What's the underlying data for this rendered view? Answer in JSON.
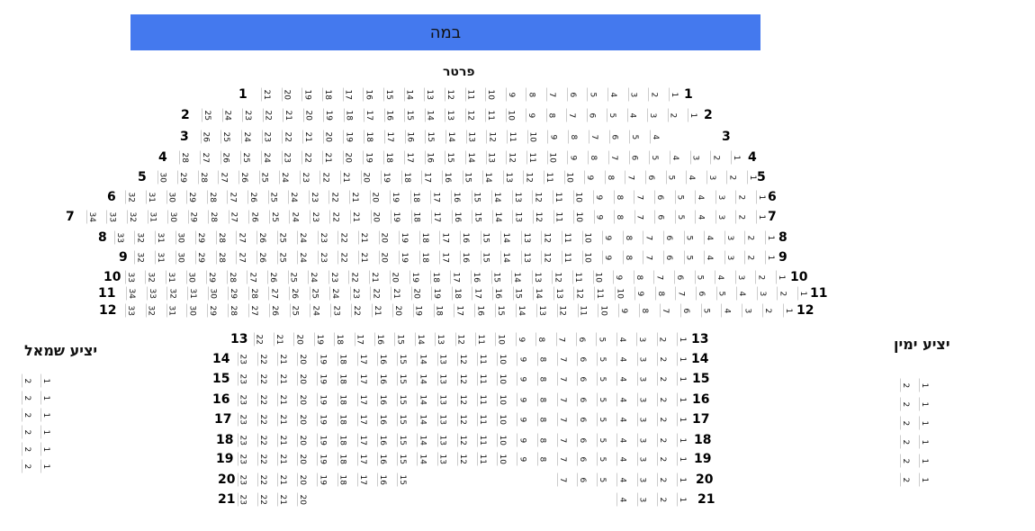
{
  "stage": {
    "label": "במה"
  },
  "parterre": {
    "title": "פרטר",
    "rows": [
      {
        "row": "1",
        "seat_ranges": [
          [
            1,
            21
          ]
        ]
      },
      {
        "row": "2",
        "seat_ranges": [
          [
            1,
            25
          ]
        ]
      },
      {
        "row": "3",
        "seat_ranges": [
          [
            4,
            26
          ]
        ]
      },
      {
        "row": "4",
        "seat_ranges": [
          [
            1,
            28
          ]
        ]
      },
      {
        "row": "5",
        "seat_ranges": [
          [
            1,
            30
          ]
        ]
      },
      {
        "row": "6",
        "seat_ranges": [
          [
            1,
            32
          ]
        ]
      },
      {
        "row": "7",
        "seat_ranges": [
          [
            1,
            34
          ]
        ]
      },
      {
        "row": "8",
        "seat_ranges": [
          [
            1,
            33
          ]
        ]
      },
      {
        "row": "9",
        "seat_ranges": [
          [
            1,
            32
          ]
        ]
      },
      {
        "row": "10",
        "seat_ranges": [
          [
            1,
            33
          ]
        ]
      },
      {
        "row": "11",
        "seat_ranges": [
          [
            1,
            34
          ]
        ]
      },
      {
        "row": "12",
        "seat_ranges": [
          [
            1,
            33
          ]
        ]
      },
      {
        "row": "13",
        "seat_ranges": [
          [
            1,
            22
          ]
        ]
      },
      {
        "row": "14",
        "seat_ranges": [
          [
            1,
            23
          ]
        ]
      },
      {
        "row": "15",
        "seat_ranges": [
          [
            1,
            23
          ]
        ]
      },
      {
        "row": "16",
        "seat_ranges": [
          [
            1,
            23
          ]
        ]
      },
      {
        "row": "17",
        "seat_ranges": [
          [
            1,
            23
          ]
        ]
      },
      {
        "row": "18",
        "seat_ranges": [
          [
            1,
            23
          ]
        ]
      },
      {
        "row": "19",
        "seat_ranges": [
          [
            1,
            23
          ]
        ]
      },
      {
        "row": "20",
        "seat_ranges": [
          [
            1,
            7
          ],
          [
            15,
            23
          ]
        ]
      },
      {
        "row": "21",
        "seat_ranges": [
          [
            1,
            4
          ],
          [
            20,
            23
          ]
        ]
      }
    ]
  },
  "balcony_left": {
    "title": "יציע שמאל",
    "rows": 6,
    "seats": [
      2,
      1
    ]
  },
  "balcony_right": {
    "title": "יציע ימין",
    "rows": 6,
    "seats": [
      2,
      1
    ]
  },
  "colors": {
    "stage": "#4479ee",
    "seat_border": "#cccccc"
  }
}
